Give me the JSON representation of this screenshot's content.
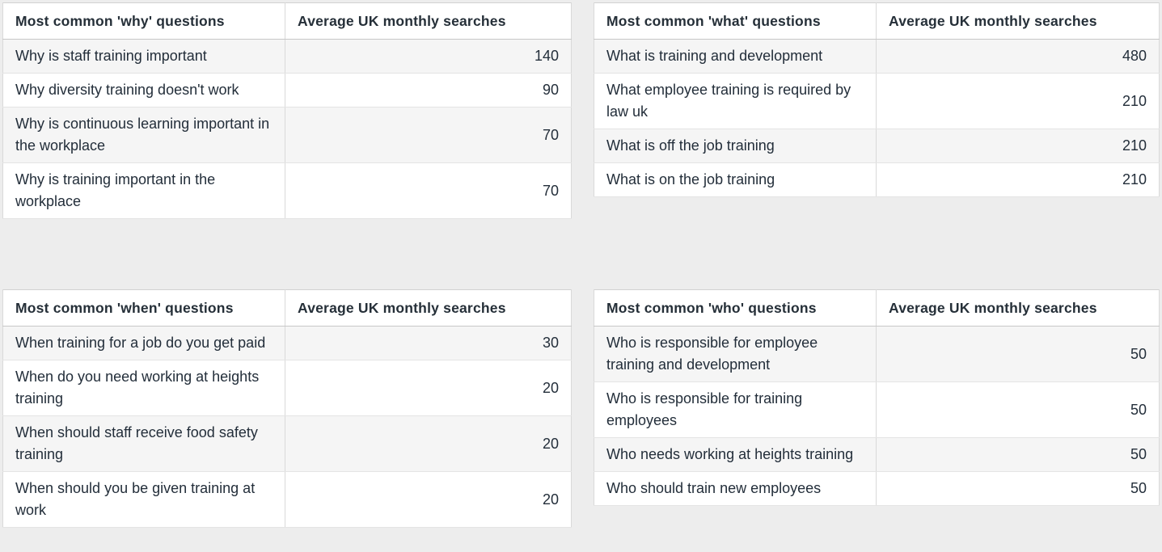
{
  "colors": {
    "page_background": "#ededed",
    "table_background": "#ffffff",
    "zebra_row_background": "#f5f5f5",
    "text": "#232e3a",
    "outer_border": "#d2d2d2",
    "row_border": "#e4e4e4",
    "header_border": "#c8c8c8"
  },
  "tables": [
    {
      "id": "why",
      "headers": [
        "Most common 'why' questions",
        "Average UK monthly searches"
      ],
      "rows": [
        {
          "question": "Why is staff training important",
          "searches": "140"
        },
        {
          "question": "Why diversity training doesn't work",
          "searches": "90"
        },
        {
          "question": "Why is continuous learning important in the workplace",
          "searches": "70"
        },
        {
          "question": "Why is training important in the workplace",
          "searches": "70"
        }
      ]
    },
    {
      "id": "what",
      "headers": [
        "Most common 'what' questions",
        "Average UK monthly searches"
      ],
      "rows": [
        {
          "question": "What is training and development",
          "searches": "480"
        },
        {
          "question": "What employee training is required by law uk",
          "searches": "210"
        },
        {
          "question": "What is off the job training",
          "searches": "210"
        },
        {
          "question": "What is on the job training",
          "searches": "210"
        }
      ]
    },
    {
      "id": "when",
      "headers": [
        "Most common 'when' questions",
        "Average UK monthly searches"
      ],
      "rows": [
        {
          "question": "When training for a job do you get paid",
          "searches": "30"
        },
        {
          "question": "When do you need working at heights training",
          "searches": "20"
        },
        {
          "question": "When should staff receive food safety training",
          "searches": "20"
        },
        {
          "question": "When should you be given training at work",
          "searches": "20"
        }
      ]
    },
    {
      "id": "who",
      "headers": [
        "Most common 'who' questions",
        "Average UK monthly searches"
      ],
      "rows": [
        {
          "question": "Who is responsible for employee training and development",
          "searches": "50"
        },
        {
          "question": "Who is responsible for training employees",
          "searches": "50"
        },
        {
          "question": "Who needs working at heights training",
          "searches": "50"
        },
        {
          "question": "Who should train new employees",
          "searches": "50"
        }
      ]
    }
  ]
}
